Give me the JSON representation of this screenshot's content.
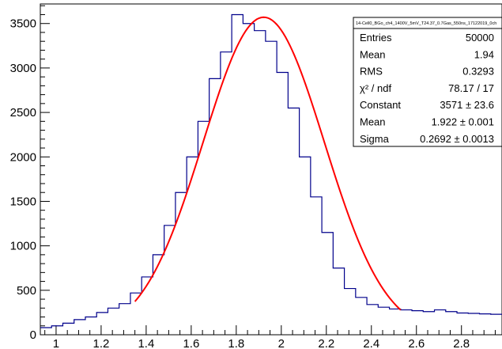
{
  "chart_data": {
    "type": "bar",
    "xlim": [
      0.93,
      2.98
    ],
    "ylim": [
      0,
      3720
    ],
    "x_ticks": [
      1,
      1.2,
      1.4,
      1.6,
      1.8,
      2,
      2.2,
      2.4,
      2.6,
      2.8
    ],
    "x_tick_labels": [
      "1",
      "1.2",
      "1.4",
      "1.6",
      "1.8",
      "2",
      "2.2",
      "2.4",
      "2.6",
      "2.8"
    ],
    "y_ticks": [
      0,
      500,
      1000,
      1500,
      2000,
      2500,
      3000,
      3500
    ],
    "y_tick_labels": [
      "0",
      "500",
      "1000",
      "1500",
      "2000",
      "2500",
      "3000",
      "3500"
    ],
    "histogram": {
      "name": "14-Cell0_BGo_ch4_1400V_5mV_T24.37_0.7Gas_550ns_17122019_0ch",
      "bin_width": 0.05,
      "bin_edges_start": 0.93,
      "values": [
        80,
        100,
        130,
        170,
        200,
        250,
        300,
        350,
        470,
        650,
        900,
        1230,
        1600,
        2000,
        2400,
        2880,
        3180,
        3600,
        3500,
        3420,
        3300,
        2950,
        2550,
        2000,
        1550,
        1150,
        750,
        520,
        420,
        340,
        310,
        290,
        280,
        270,
        260,
        280,
        260,
        245,
        240,
        235,
        230
      ],
      "color": "#00008b"
    },
    "fit": {
      "function": "gaus",
      "constant": 3571,
      "mean": 1.922,
      "sigma": 0.2692,
      "x_range": [
        1.35,
        2.53
      ],
      "color": "#ff0000"
    },
    "stats_box": {
      "title": "14-Cell0_BGo_ch4_1400V_5mV_T24.37_0.7Gas_550ns_17122019_0ch",
      "rows": [
        {
          "label": "Entries",
          "value": "50000"
        },
        {
          "label": "Mean",
          "value": "1.94"
        },
        {
          "label": "RMS",
          "value": "0.3293"
        },
        {
          "label": "χ² / ndf",
          "value": "78.17 / 17"
        },
        {
          "label": "Constant",
          "value": "3571 ± 23.6"
        },
        {
          "label": "Mean",
          "value": "1.922 ± 0.001"
        },
        {
          "label": "Sigma",
          "value": "0.2692 ± 0.0013"
        }
      ]
    }
  }
}
